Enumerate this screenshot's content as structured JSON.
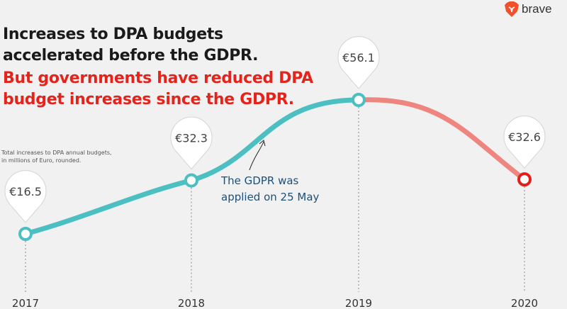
{
  "header": {
    "title_line1": "Increases to DPA budgets",
    "title_line2": "accelerated before the GDPR.",
    "subtitle_line1": "But governments have reduced DPA",
    "subtitle_line2": "budget increases since the GDPR.",
    "note_line1": "Total increases to DPA annual budgets,",
    "note_line2": "in millions of Euro, rounded."
  },
  "logo": {
    "text": "brave",
    "icon": "brave-lion-icon",
    "color": "#f0502a"
  },
  "annotation": {
    "line1": "The GDPR was",
    "line2": "applied on 25 May"
  },
  "chart_data": {
    "type": "line",
    "categories": [
      "2017",
      "2018",
      "2019",
      "2020"
    ],
    "values": [
      16.5,
      32.3,
      56.1,
      32.6
    ],
    "data_labels": [
      "€16.5",
      "€32.3",
      "€56.1",
      "€32.6"
    ],
    "unit": "millions of Euro",
    "grid": false,
    "colors": {
      "before": "#4cbfc2",
      "after": "#ef857f",
      "last_marker": "#e0211b"
    }
  }
}
